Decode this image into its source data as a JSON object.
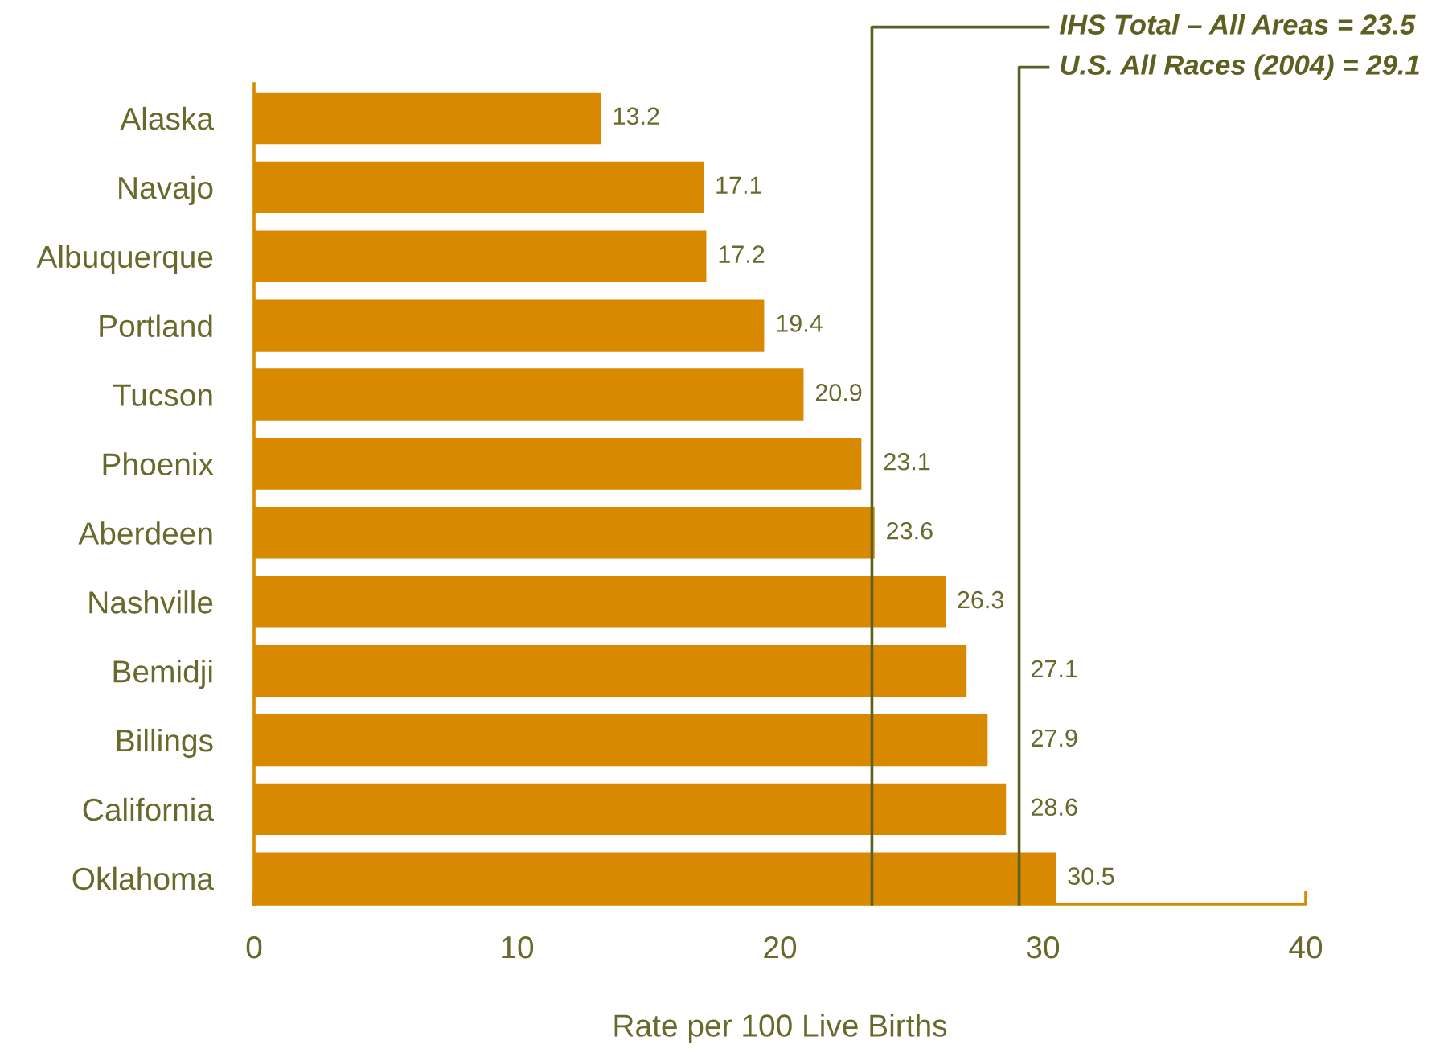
{
  "chart_data": {
    "type": "bar",
    "orientation": "horizontal",
    "categories": [
      "Alaska",
      "Navajo",
      "Albuquerque",
      "Portland",
      "Tucson",
      "Phoenix",
      "Aberdeen",
      "Nashville",
      "Bemidji",
      "Billings",
      "California",
      "Oklahoma"
    ],
    "values": [
      13.2,
      17.1,
      17.2,
      19.4,
      20.9,
      23.1,
      23.6,
      26.3,
      27.1,
      27.9,
      28.6,
      30.5
    ],
    "color": "#d98900",
    "data_labels": true,
    "xlim": [
      0,
      40
    ],
    "xticks": [
      0,
      10,
      20,
      30,
      40
    ],
    "xlabel": "Rate per 100 Live Births",
    "ref_lines": [
      {
        "axis": "x",
        "value": 23.5,
        "label": "IHS Total – All Areas = 23.5",
        "color": "#5e6022"
      },
      {
        "axis": "x",
        "value": 29.1,
        "label": "U.S. All Races (2004) = 29.1",
        "color": "#5e6022"
      }
    ]
  }
}
